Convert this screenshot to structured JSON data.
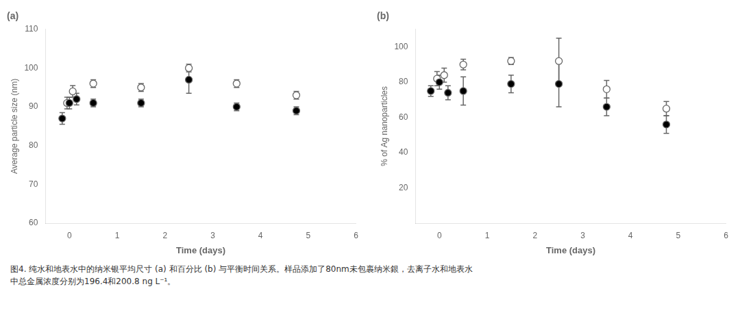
{
  "chart_data": [
    {
      "type": "scatter",
      "title": "(a)",
      "xlabel": "Time (days)",
      "ylabel": "Average particle size (nm)",
      "xlim": [
        -0.5,
        6
      ],
      "xticks": [
        0,
        1,
        2,
        3,
        4,
        5,
        6
      ],
      "ylim": [
        60,
        110
      ],
      "yticks": [
        60,
        70,
        80,
        90,
        100,
        110
      ],
      "grid": false,
      "series": [
        {
          "color": "white",
          "marker": "circle",
          "x": [
            -0.05,
            0.07,
            0.5,
            1.5,
            2.5,
            3.5,
            4.75
          ],
          "values": [
            91,
            94,
            96,
            95,
            100,
            96,
            93
          ],
          "errors": [
            1.5,
            1.5,
            1.0,
            1.0,
            1.0,
            1.0,
            1.0
          ]
        },
        {
          "color": "black",
          "marker": "circle",
          "x": [
            -0.15,
            0.0,
            0.15,
            0.5,
            1.5,
            2.5,
            3.5,
            4.75
          ],
          "values": [
            87,
            91,
            92,
            91,
            91,
            97,
            90,
            89
          ],
          "errors": [
            1.5,
            1.5,
            1.5,
            1.0,
            1.0,
            3.5,
            1.0,
            1.0
          ]
        }
      ]
    },
    {
      "type": "scatter",
      "title": "(b)",
      "xlabel": "Time (days)",
      "ylabel": "% of Ag nanoparticles",
      "xlim": [
        -0.5,
        6
      ],
      "xticks": [
        0,
        1,
        2,
        3,
        4,
        5,
        6
      ],
      "ylim": [
        0,
        110
      ],
      "yticks": [
        20,
        40,
        60,
        80,
        100
      ],
      "grid": false,
      "series": [
        {
          "color": "white",
          "marker": "circle",
          "x": [
            -0.05,
            0.1,
            0.5,
            1.5,
            2.5,
            3.5,
            4.75
          ],
          "values": [
            82,
            84,
            90,
            92,
            92,
            76,
            65
          ],
          "errors": [
            4,
            4,
            3,
            2,
            13,
            5,
            4
          ]
        },
        {
          "color": "black",
          "marker": "circle",
          "x": [
            -0.18,
            0.0,
            0.18,
            0.5,
            1.5,
            2.5,
            3.5,
            4.75
          ],
          "values": [
            75,
            80,
            74,
            75,
            79,
            79,
            66,
            56
          ],
          "errors": [
            3,
            4,
            4,
            8,
            5,
            13,
            5,
            5
          ]
        }
      ]
    }
  ],
  "caption": [
    "图4. 纯水和地表水中的纳米银平均尺寸 (a) 和百分比 (b) 与平衡时间关系。样品添加了80nm未包裹纳米銀，去离子水和地表水",
    "中总金属浓度分别为196.4和200.8 ng L⁻¹。"
  ]
}
